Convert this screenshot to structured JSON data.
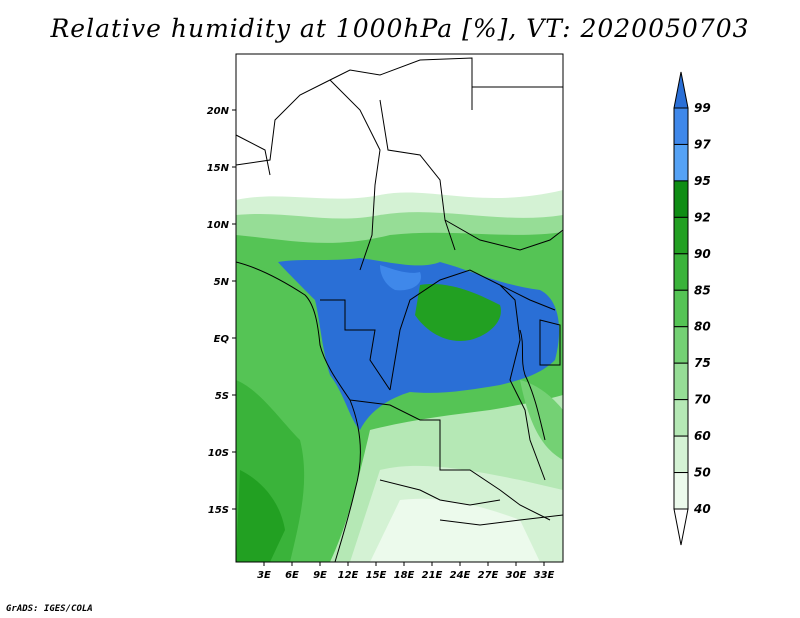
{
  "title": "Relative humidity at 1000hPa [%], VT: 2020050703",
  "credit": "GrADS: IGES/COLA",
  "map": {
    "lat_ticks": [
      "20N",
      "15N",
      "10N",
      "5N",
      "EQ",
      "5S",
      "10S",
      "15S"
    ],
    "lon_ticks": [
      "3E",
      "6E",
      "9E",
      "12E",
      "15E",
      "18E",
      "21E",
      "24E",
      "27E",
      "30E",
      "33E"
    ]
  },
  "colorbar": {
    "levels": [
      "99",
      "97",
      "95",
      "92",
      "90",
      "85",
      "80",
      "75",
      "70",
      "60",
      "50",
      "40"
    ],
    "colors": [
      "#2a6fd6",
      "#3f88ea",
      "#55a2f5",
      "#0f8d14",
      "#22a022",
      "#3ab33a",
      "#55c455",
      "#74d174",
      "#96dd96",
      "#b5e8b5",
      "#d4f2d4",
      "#ecfaec",
      "#ffffff"
    ]
  }
}
